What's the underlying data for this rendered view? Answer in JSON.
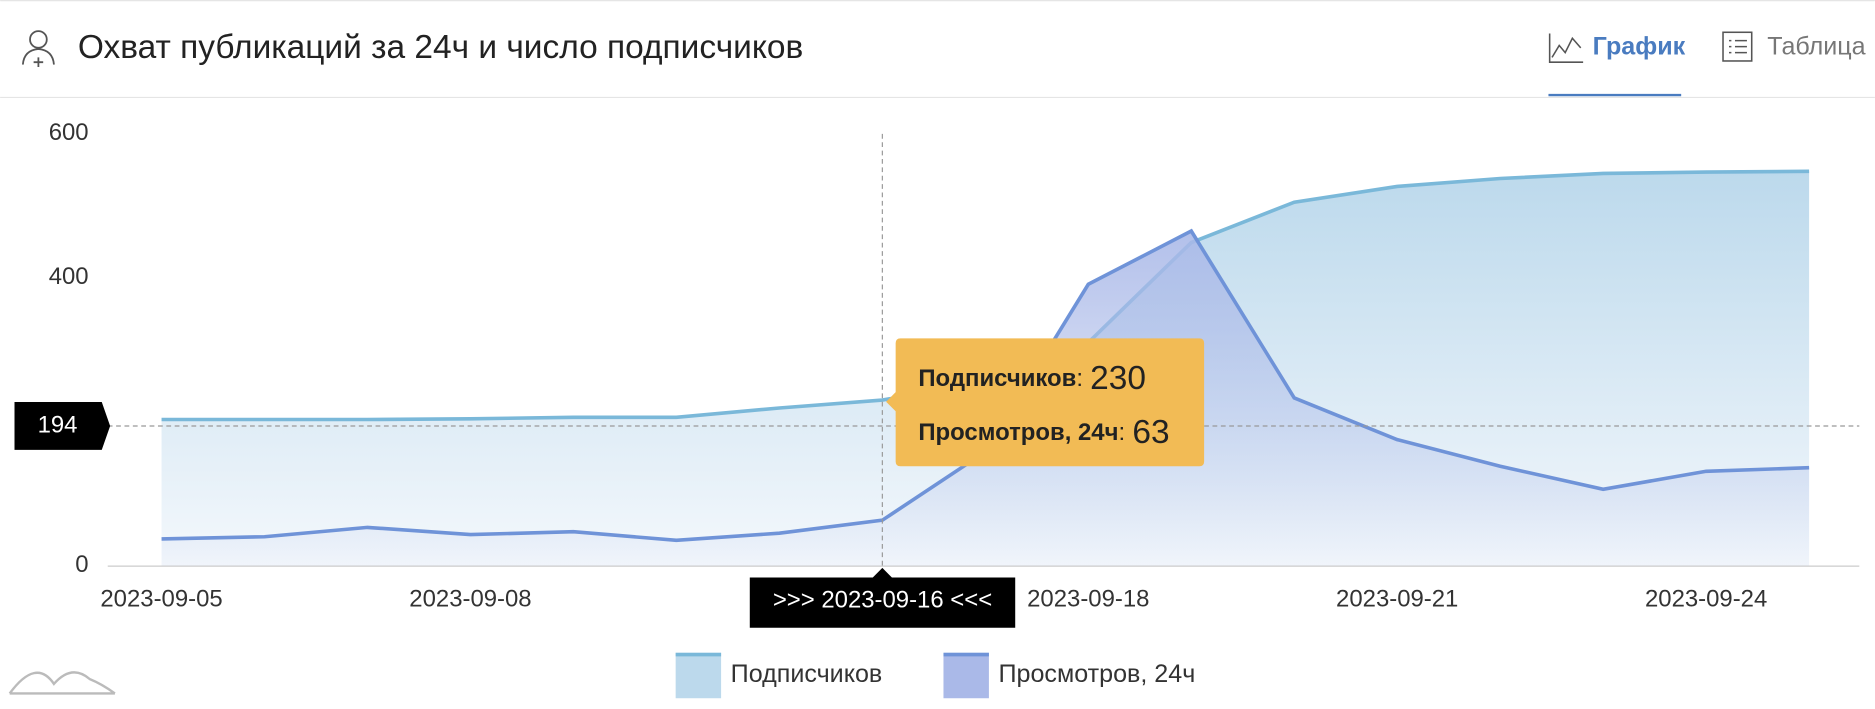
{
  "header": {
    "title": "Охват публикаций за 24ч и число подписчиков",
    "tabs": [
      "График",
      "Таблица"
    ],
    "active_tab": 0
  },
  "chart_data": {
    "type": "area",
    "categories": [
      "2023-09-05",
      null,
      null,
      "2023-09-08",
      null,
      null,
      null,
      null,
      null,
      "2023-09-18",
      null,
      null,
      "2023-09-21",
      null,
      null,
      "2023-09-24",
      null
    ],
    "series": [
      {
        "name": "Подписчиков",
        "color": "#7ab8d9",
        "fill": "#bcd9ec",
        "values": [
          203,
          203,
          203,
          204,
          206,
          206,
          219,
          230,
          255,
          310,
          449,
          505,
          527,
          538,
          545,
          547,
          548
        ]
      },
      {
        "name": "Просмотров, 24ч",
        "color": "#6f93d8",
        "fill": "#aab9e8",
        "values": [
          37,
          40,
          53,
          43,
          47,
          35,
          45,
          63,
          158,
          391,
          465,
          233,
          175,
          138,
          106,
          131,
          136
        ]
      }
    ],
    "ylim": [
      0,
      600
    ],
    "yticks": [
      0,
      400,
      600
    ],
    "crosshair": {
      "value": 194,
      "x_label": ">>> 2023-09-16 <<<"
    },
    "tooltip": {
      "separator": ":",
      "items": [
        {
          "name": "Подписчиков",
          "value": 230
        },
        {
          "name": "Просмотров, 24ч",
          "value": 63
        }
      ]
    }
  }
}
